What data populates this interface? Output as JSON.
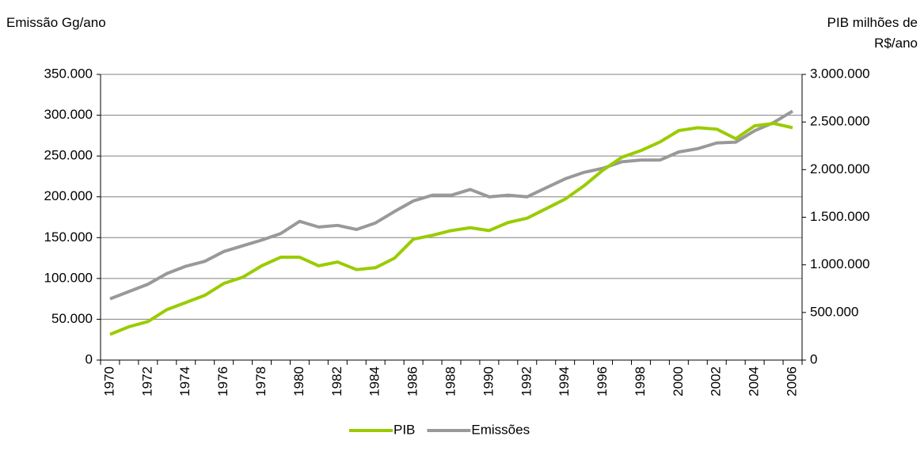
{
  "chart_data": {
    "type": "line",
    "y_label": "Emissão Gg/ano",
    "y2_label": "PIB milhões de R$/ano",
    "categories": [
      "1970",
      null,
      "1972",
      null,
      "1974",
      null,
      "1976",
      null,
      "1978",
      null,
      "1980",
      null,
      "1982",
      null,
      "1984",
      null,
      "1986",
      null,
      "1988",
      null,
      "1990",
      null,
      "1992",
      null,
      "1994",
      null,
      "1996",
      null,
      "1998",
      null,
      "2000",
      null,
      "2002",
      null,
      "2004",
      null,
      "2006"
    ],
    "series": [
      {
        "name": "PIB",
        "color": "#99cc00",
        "axis": "y2",
        "values": [
          270000,
          350000,
          405000,
          530000,
          605000,
          680000,
          805000,
          870000,
          990000,
          1080000,
          1080000,
          990000,
          1030000,
          950000,
          970000,
          1070000,
          1270000,
          1310000,
          1360000,
          1390000,
          1360000,
          1445000,
          1490000,
          1590000,
          1690000,
          1830000,
          1995000,
          2130000,
          2200000,
          2290000,
          2410000,
          2440000,
          2425000,
          2325000,
          2460000,
          2485000,
          2440000
        ]
      },
      {
        "name": "Emissões",
        "color": "#999999",
        "axis": "y",
        "values": [
          75000,
          84000,
          93000,
          106000,
          115000,
          121000,
          133000,
          140000,
          147000,
          155000,
          170000,
          163000,
          165000,
          160000,
          168000,
          182000,
          195000,
          202000,
          202000,
          209000,
          200000,
          202000,
          200000,
          211000,
          222000,
          230000,
          235000,
          243000,
          245000,
          245000,
          255000,
          259000,
          266000,
          267000,
          281000,
          291000,
          305000
        ]
      }
    ],
    "ylim": [
      0,
      350000
    ],
    "yticks": [
      0,
      {
        "value": 50000,
        "label": "50.000"
      },
      {
        "value": 100000,
        "label": "100.000"
      },
      {
        "value": 150000,
        "label": "150.000"
      },
      {
        "value": 200000,
        "label": "200.000"
      },
      {
        "value": 250000,
        "label": "250.000"
      },
      {
        "value": 300000,
        "label": "300.000"
      },
      {
        "value": 350000,
        "label": "350.000"
      }
    ],
    "y2lim": [
      0,
      3000000
    ],
    "y2ticks": [
      0,
      {
        "value": 500000,
        "label": "500.000"
      },
      {
        "value": 1000000,
        "label": "1.000.000"
      },
      {
        "value": 1500000,
        "label": "1.500.000"
      },
      {
        "value": 2000000,
        "label": "2.000.000"
      },
      {
        "value": 2500000,
        "label": "2.500.000"
      },
      {
        "value": 3000000,
        "label": "3.000.000"
      }
    ],
    "grid": true,
    "legend": "bottom"
  }
}
